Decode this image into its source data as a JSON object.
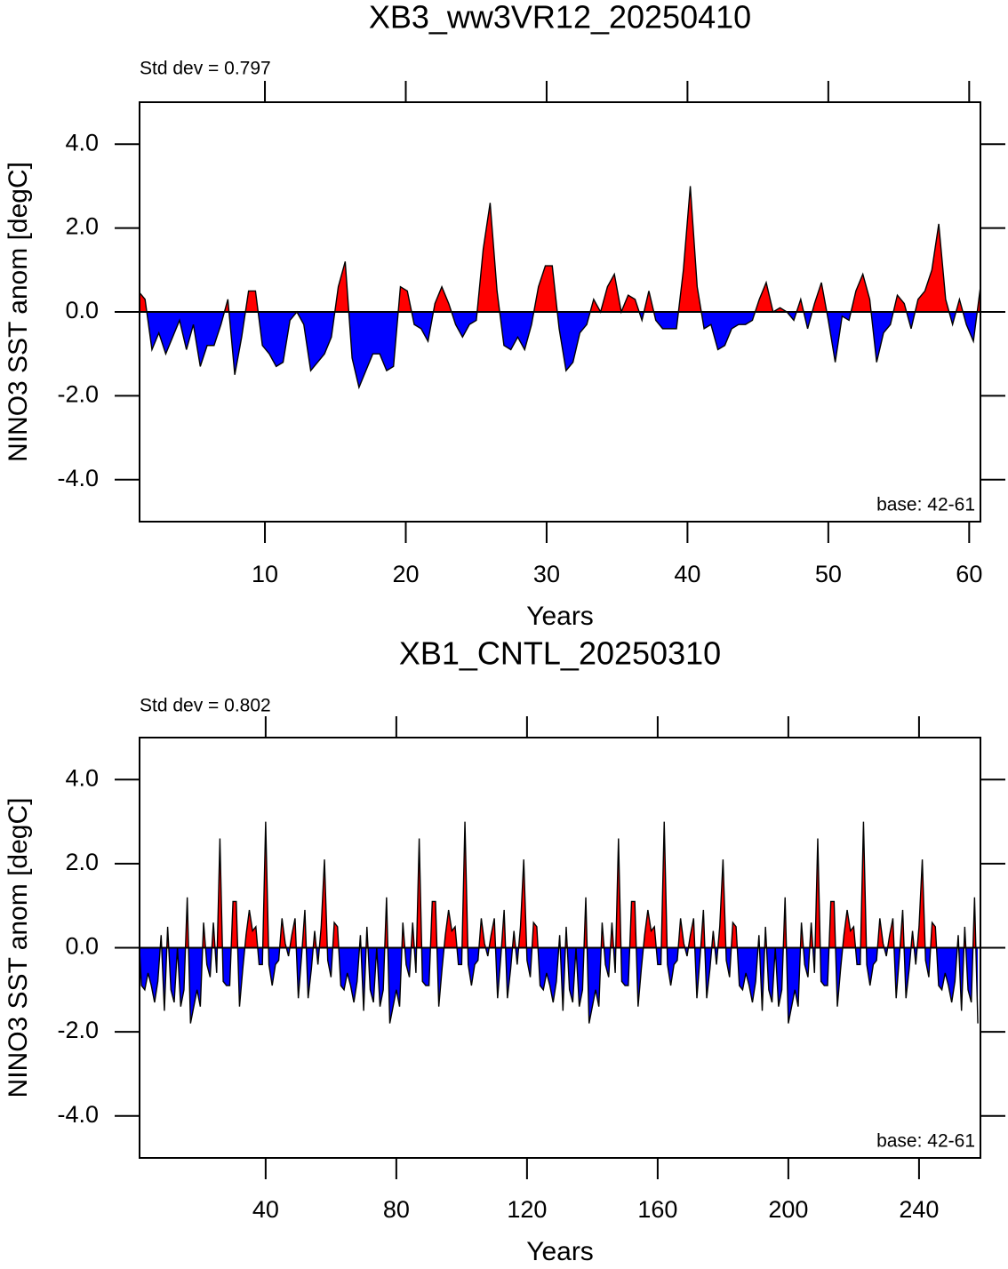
{
  "chart_data": [
    {
      "type": "area",
      "title": "XB3_ww3VR12_20250410",
      "annotation_left": "Std dev = 0.797",
      "annotation_right": "base: 42-61",
      "xlabel": "Years",
      "ylabel": "NINO3 SST anom [degC]",
      "above_color": "#ff0000",
      "below_color": "#0000ff",
      "line_color": "#000000",
      "xlim": [
        1.1,
        60.8
      ],
      "ylim": [
        -5,
        5
      ],
      "xticks": [
        10,
        20,
        30,
        40,
        50,
        60
      ],
      "yticks": [
        {
          "value": -4,
          "label": "-4.0"
        },
        {
          "value": -2,
          "label": "-2.0"
        },
        {
          "value": 0,
          "label": "0.0"
        },
        {
          "value": 2,
          "label": "2.0"
        },
        {
          "value": 4,
          "label": "4.0"
        }
      ],
      "x": [
        1,
        1.49,
        1.98,
        2.47,
        2.96,
        3.45,
        3.94,
        4.43,
        4.92,
        5.41,
        5.9,
        6.39,
        6.88,
        7.37,
        7.86,
        8.35,
        8.84,
        9.33,
        9.82,
        10.31,
        10.8,
        11.29,
        11.78,
        12.27,
        12.76,
        13.25,
        13.74,
        14.23,
        14.72,
        15.21,
        15.7,
        16.19,
        16.68,
        17.17,
        17.66,
        18.15,
        18.64,
        19.13,
        19.62,
        20.11,
        20.6,
        21.09,
        21.58,
        22.07,
        22.56,
        23.05,
        23.54,
        24.03,
        24.52,
        25.01,
        25.5,
        25.99,
        26.48,
        26.97,
        27.46,
        27.95,
        28.44,
        28.93,
        29.42,
        29.91,
        30.4,
        30.89,
        31.38,
        31.87,
        32.36,
        32.85,
        33.34,
        33.83,
        34.32,
        34.81,
        35.3,
        35.79,
        36.28,
        36.77,
        37.26,
        37.75,
        38.24,
        38.73,
        39.22,
        39.71,
        40.2,
        40.69,
        41.18,
        41.67,
        42.16,
        42.65,
        43.14,
        43.63,
        44.12,
        44.61,
        45.1,
        45.59,
        46.08,
        46.57,
        47.06,
        47.55,
        48.04,
        48.53,
        49.02,
        49.51,
        50,
        50.49,
        50.98,
        51.47,
        51.96,
        52.45,
        52.94,
        53.43,
        53.92,
        54.41,
        54.9,
        55.39,
        55.88,
        56.37,
        56.86,
        57.35,
        57.84,
        58.33,
        58.82,
        59.31,
        59.8,
        60.3,
        60.8
      ],
      "values": [
        0.5,
        0.3,
        -0.9,
        -0.5,
        -1.0,
        -0.6,
        -0.2,
        -0.9,
        -0.3,
        -1.3,
        -0.8,
        -0.8,
        -0.3,
        0.3,
        -1.5,
        -0.6,
        0.5,
        0.5,
        -0.8,
        -1.0,
        -1.3,
        -1.2,
        -0.2,
        0.0,
        -0.3,
        -1.4,
        -1.2,
        -1.0,
        -0.6,
        0.6,
        1.2,
        -1.1,
        -1.8,
        -1.4,
        -1.0,
        -1.0,
        -1.4,
        -1.3,
        0.6,
        0.5,
        -0.3,
        -0.4,
        -0.7,
        0.2,
        0.6,
        0.2,
        -0.3,
        -0.6,
        -0.3,
        -0.2,
        1.5,
        2.6,
        0.5,
        -0.8,
        -0.9,
        -0.6,
        -0.9,
        -0.3,
        0.6,
        1.1,
        1.1,
        -0.4,
        -1.4,
        -1.2,
        -0.5,
        -0.3,
        0.3,
        0.0,
        0.6,
        0.9,
        0.0,
        0.4,
        0.3,
        -0.2,
        0.5,
        -0.2,
        -0.4,
        -0.4,
        -0.4,
        1.0,
        3.0,
        0.6,
        -0.4,
        -0.3,
        -0.9,
        -0.8,
        -0.4,
        -0.3,
        -0.3,
        -0.2,
        0.3,
        0.7,
        0.0,
        0.1,
        0.0,
        -0.2,
        0.3,
        -0.4,
        0.2,
        0.7,
        -0.2,
        -1.2,
        -0.1,
        -0.2,
        0.5,
        0.9,
        0.3,
        -1.2,
        -0.5,
        -0.3,
        0.4,
        0.2,
        -0.4,
        0.3,
        0.5,
        1.0,
        2.1,
        0.3,
        -0.3,
        0.3,
        -0.3,
        -0.7,
        0.6
      ]
    },
    {
      "type": "area",
      "title": "XB1_CNTL_20250310",
      "annotation_left": "Std dev = 0.802",
      "annotation_right": "base: 42-61",
      "xlabel": "Years",
      "ylabel": "NINO3 SST anom [degC]",
      "above_color": "#ff0000",
      "below_color": "#0000ff",
      "line_color": "#000000",
      "xlim": [
        1.4,
        258.8
      ],
      "ylim": [
        -5,
        5
      ],
      "xticks": [
        40,
        80,
        120,
        160,
        200,
        240
      ],
      "yticks": [
        {
          "value": -4,
          "label": "-4.0"
        },
        {
          "value": -2,
          "label": "-2.0"
        },
        {
          "value": 0,
          "label": "0.0"
        },
        {
          "value": 2,
          "label": "2.0"
        },
        {
          "value": 4,
          "label": "4.0"
        }
      ],
      "x": [
        1,
        2,
        3,
        4,
        5,
        6,
        7,
        8,
        9,
        10,
        11,
        12,
        13,
        14,
        15,
        16,
        17,
        18,
        19,
        20,
        21,
        22,
        23,
        24,
        25,
        26,
        27,
        28,
        29,
        30,
        31,
        32,
        33,
        34,
        35,
        36,
        37,
        38,
        39,
        40,
        41,
        42,
        43,
        44,
        45,
        46,
        47,
        48,
        49,
        50,
        51,
        52,
        53,
        54,
        55,
        56,
        57,
        58,
        59,
        60,
        61,
        62,
        63,
        64,
        65,
        66,
        67,
        68,
        69,
        70,
        71,
        72,
        73,
        74,
        75,
        76,
        77,
        78,
        79,
        80,
        81,
        82,
        83,
        84,
        85,
        86,
        87,
        88,
        89,
        90,
        91,
        92,
        93,
        94,
        95,
        96,
        97,
        98,
        99,
        100,
        101,
        102,
        103,
        104,
        105,
        106,
        107,
        108,
        109,
        110,
        111,
        112,
        113,
        114,
        115,
        116,
        117,
        118,
        119,
        120,
        121,
        122,
        123,
        124,
        125,
        126,
        127,
        128,
        129,
        130,
        131,
        132,
        133,
        134,
        135,
        136,
        137,
        138,
        139,
        140,
        141,
        142,
        143,
        144,
        145,
        146,
        147,
        148,
        149,
        150,
        151,
        152,
        153,
        154,
        155,
        156,
        157,
        158,
        159,
        160,
        161,
        162,
        163,
        164,
        165,
        166,
        167,
        168,
        169,
        170,
        171,
        172,
        173,
        174,
        175,
        176,
        177,
        178,
        179,
        180,
        181,
        182,
        183,
        184,
        185,
        186,
        187,
        188,
        189,
        190,
        191,
        192,
        193,
        194,
        195,
        196,
        197,
        198,
        199,
        200,
        201,
        202,
        203,
        204,
        205,
        206,
        207,
        208,
        209,
        210,
        211,
        212,
        213,
        214,
        215,
        216,
        217,
        218,
        219,
        220,
        221,
        222,
        223,
        224,
        225,
        226,
        227,
        228,
        229,
        230,
        231,
        232,
        233,
        234,
        235,
        236,
        237,
        238,
        239,
        240,
        241,
        242,
        243,
        244,
        245,
        246,
        247,
        248,
        249,
        250,
        251,
        252,
        253,
        254,
        255,
        256,
        257,
        258
      ],
      "values": [
        0.5,
        -0.9,
        -1.0,
        -0.6,
        -0.9,
        -1.3,
        -0.8,
        0.3,
        -1.5,
        0.5,
        -1.0,
        -1.3,
        0.0,
        -1.4,
        -1.0,
        1.2,
        -1.8,
        -1.4,
        -1.0,
        -1.4,
        0.6,
        -0.4,
        -0.7,
        0.6,
        -0.6,
        2.6,
        -0.8,
        -0.9,
        -0.9,
        1.1,
        1.1,
        -1.4,
        -0.5,
        0.3,
        0.9,
        0.4,
        0.5,
        -0.4,
        -0.4,
        3.0,
        -0.4,
        -0.9,
        -0.4,
        -0.3,
        0.7,
        0.1,
        -0.2,
        0.3,
        0.7,
        -1.2,
        -0.2,
        0.9,
        -1.2,
        -0.5,
        0.4,
        -0.4,
        0.5,
        2.1,
        -0.3,
        -0.7,
        0.6,
        0.5,
        -0.9,
        -1.0,
        -0.6,
        -0.9,
        -1.3,
        -0.8,
        0.3,
        -1.5,
        0.5,
        -1.0,
        -1.3,
        0.0,
        -1.4,
        -1.0,
        1.2,
        -1.8,
        -1.4,
        -1.0,
        -1.4,
        0.6,
        -0.4,
        -0.7,
        0.6,
        -0.6,
        2.6,
        -0.8,
        -0.9,
        -0.9,
        1.1,
        1.1,
        -1.4,
        -0.5,
        0.3,
        0.9,
        0.4,
        0.5,
        -0.4,
        -0.4,
        3.0,
        -0.4,
        -0.9,
        -0.4,
        -0.3,
        0.7,
        0.1,
        -0.2,
        0.3,
        0.7,
        -1.2,
        -0.2,
        0.9,
        -1.2,
        -0.5,
        0.4,
        -0.4,
        0.5,
        2.1,
        -0.3,
        -0.7,
        0.6,
        0.5,
        -0.9,
        -1.0,
        -0.6,
        -0.9,
        -1.3,
        -0.8,
        0.3,
        -1.5,
        0.5,
        -1.0,
        -1.3,
        0.0,
        -1.4,
        -1.0,
        1.2,
        -1.8,
        -1.4,
        -1.0,
        -1.4,
        0.6,
        -0.4,
        -0.7,
        0.6,
        -0.6,
        2.6,
        -0.8,
        -0.9,
        -0.9,
        1.1,
        1.1,
        -1.4,
        -0.5,
        0.3,
        0.9,
        0.4,
        0.5,
        -0.4,
        -0.4,
        3.0,
        -0.4,
        -0.9,
        -0.4,
        -0.3,
        0.7,
        0.1,
        -0.2,
        0.3,
        0.7,
        -1.2,
        -0.2,
        0.9,
        -1.2,
        -0.5,
        0.4,
        -0.4,
        0.5,
        2.1,
        -0.3,
        -0.7,
        0.6,
        0.5,
        -0.9,
        -1.0,
        -0.6,
        -0.9,
        -1.3,
        -0.8,
        0.3,
        -1.5,
        0.5,
        -1.0,
        -1.3,
        0.0,
        -1.4,
        -1.0,
        1.2,
        -1.8,
        -1.4,
        -1.0,
        -1.4,
        0.6,
        -0.4,
        -0.7,
        0.6,
        -0.6,
        2.6,
        -0.8,
        -0.9,
        -0.9,
        1.1,
        1.1,
        -1.4,
        -0.5,
        0.3,
        0.9,
        0.4,
        0.5,
        -0.4,
        -0.4,
        3.0,
        -0.4,
        -0.9,
        -0.4,
        -0.3,
        0.7,
        0.1,
        -0.2,
        0.3,
        0.7,
        -1.2,
        -0.2,
        0.9,
        -1.2,
        -0.5,
        0.4,
        -0.4,
        0.5,
        2.1,
        -0.3,
        -0.7,
        0.6,
        0.5,
        -0.9,
        -1.0,
        -0.6,
        -0.9,
        -1.3,
        -0.8,
        0.3,
        -1.5,
        0.5,
        -1.0,
        -1.3,
        1.2,
        -1.8
      ]
    }
  ]
}
